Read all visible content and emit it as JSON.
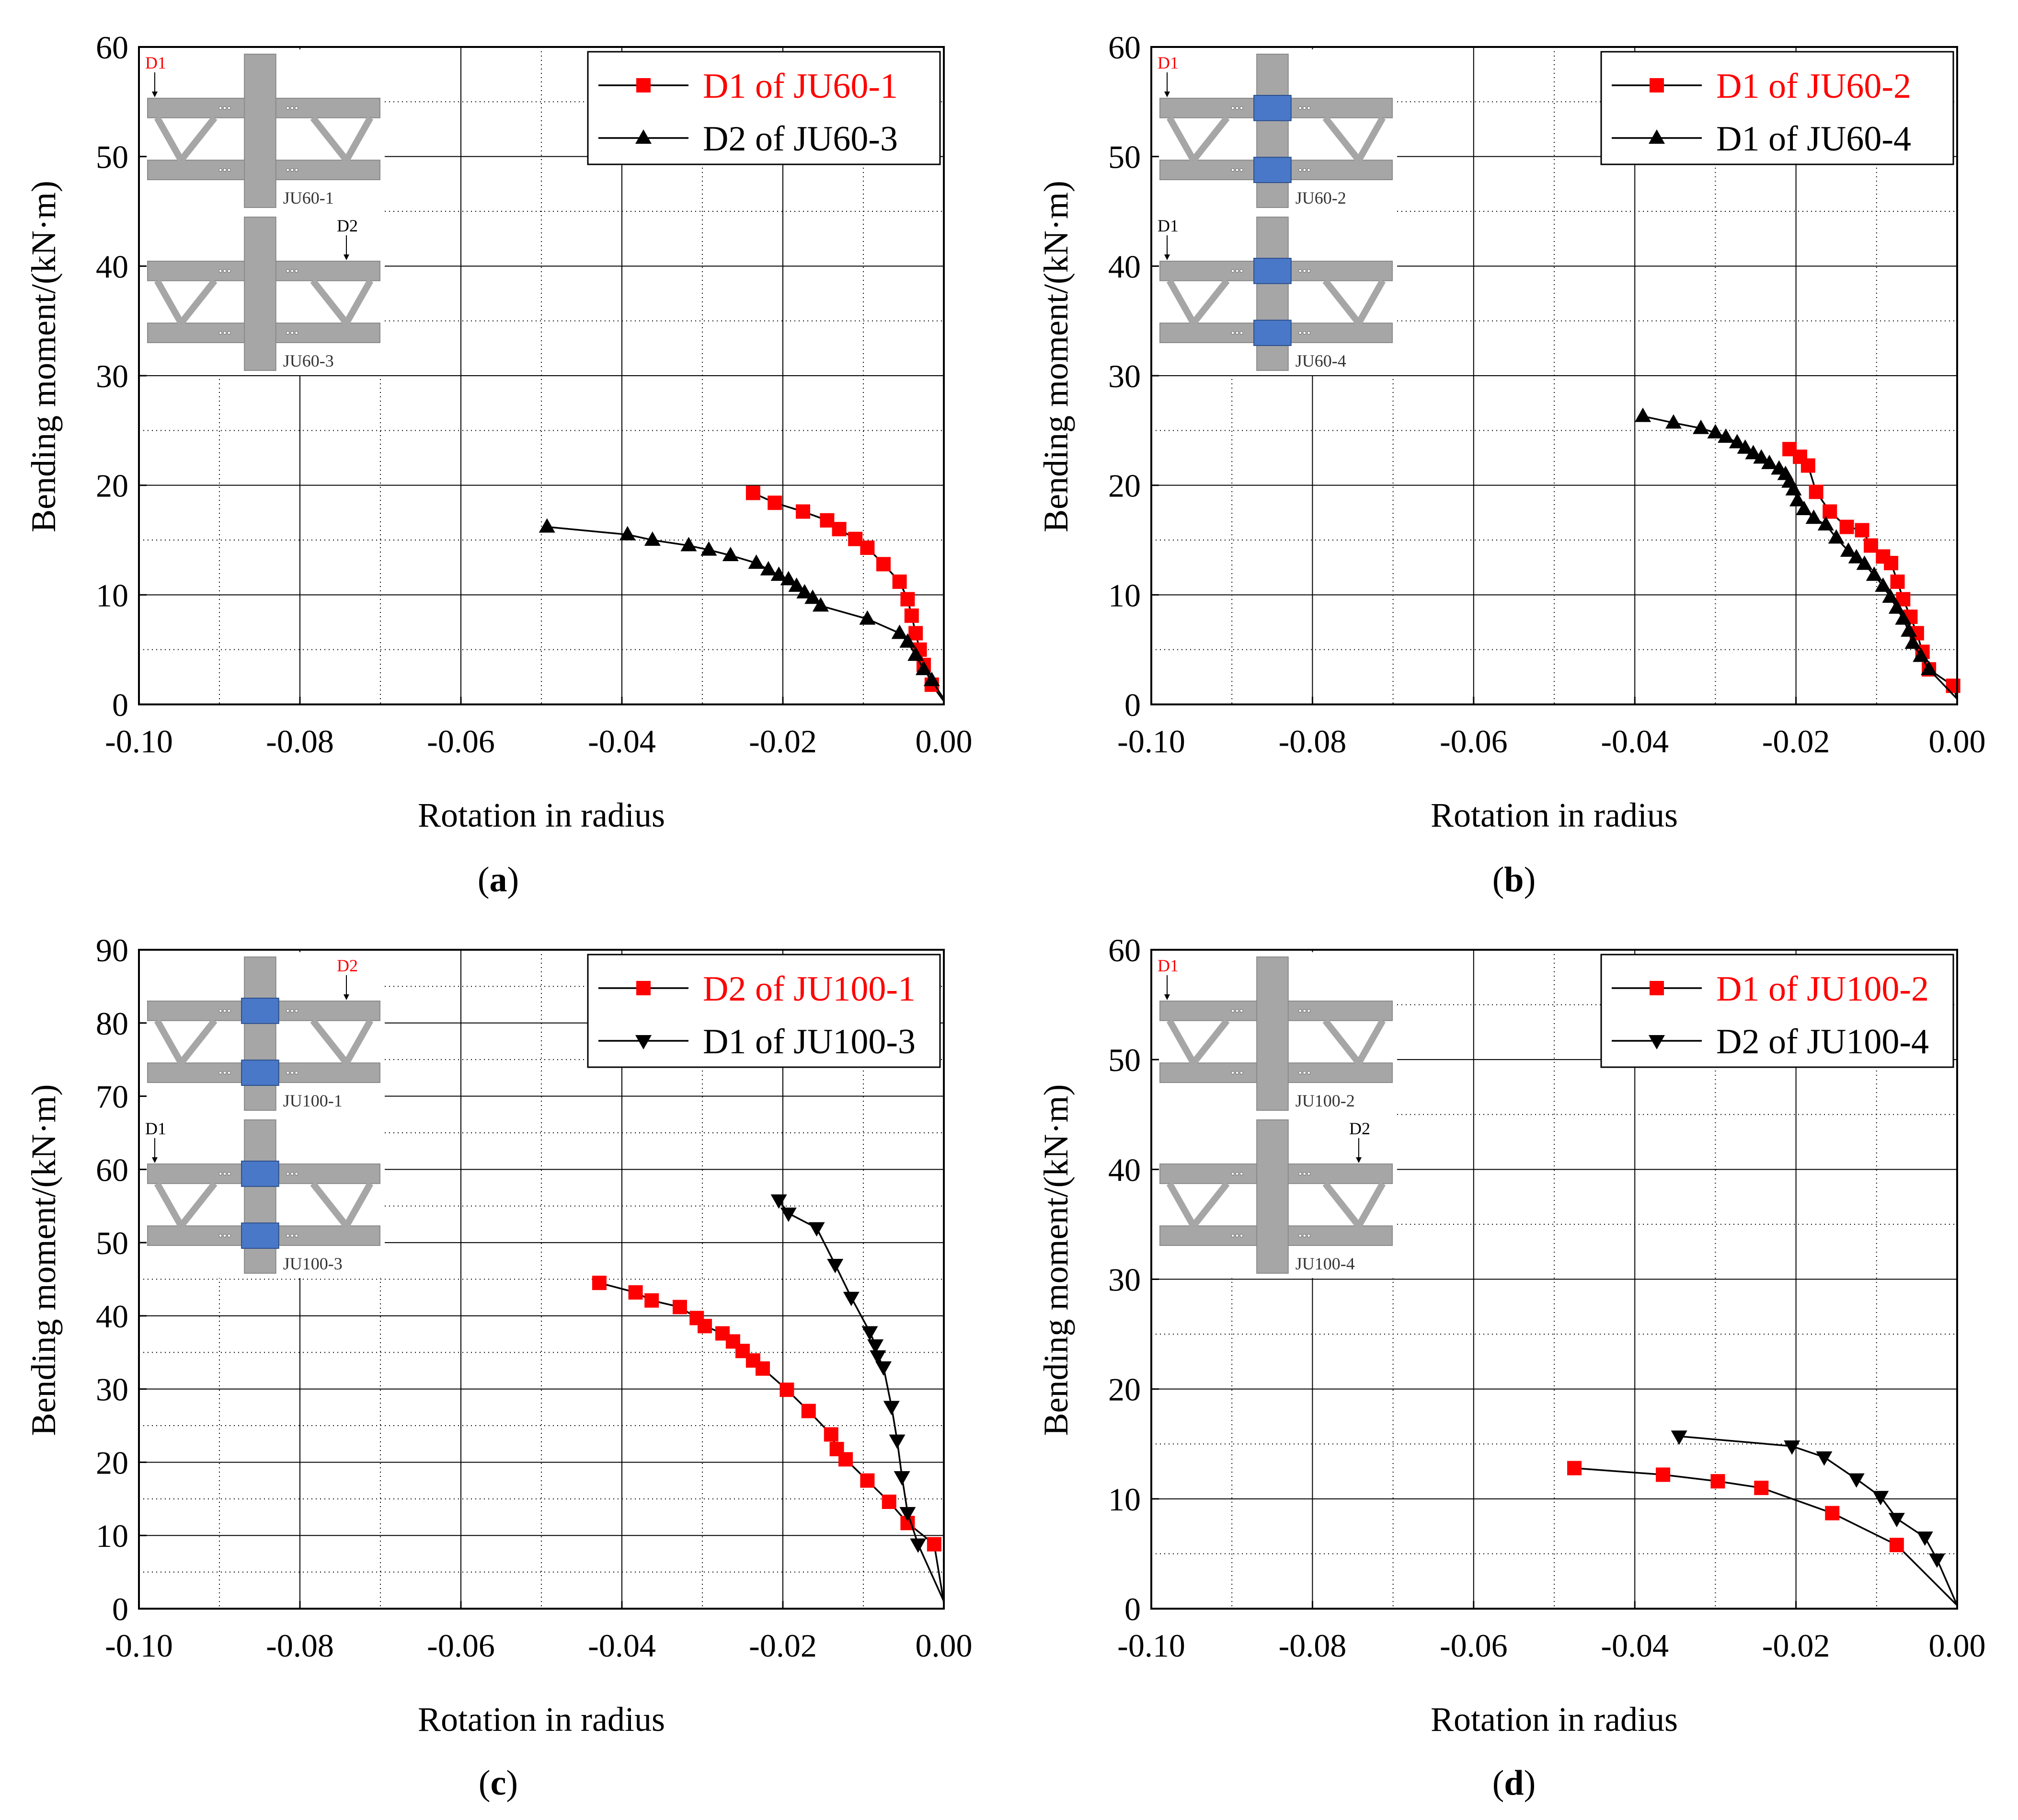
{
  "figure": {
    "panel_labels": [
      "(a)",
      "(b)",
      "(c)",
      "(d)"
    ]
  },
  "chart_data": [
    {
      "panel": "a",
      "type": "line",
      "title": "",
      "xlabel": "Rotation in radius",
      "ylabel": "Bending moment/(kN·m)",
      "xlim": [
        -0.1,
        0.0
      ],
      "ylim": [
        0,
        60
      ],
      "xticks": [
        -0.1,
        -0.08,
        -0.06,
        -0.04,
        -0.02,
        0.0
      ],
      "xtick_labels": [
        "-0.10",
        "-0.08",
        "-0.06",
        "-0.04",
        "-0.02",
        "0.00"
      ],
      "yticks": [
        0,
        10,
        20,
        30,
        40,
        50,
        60
      ],
      "ytick_labels": [
        "0",
        "10",
        "20",
        "30",
        "40",
        "50",
        "60"
      ],
      "legend_position": "top-right",
      "series": [
        {
          "name": "D1 of JU60-1",
          "marker": "square",
          "color": "#ff0000",
          "legend_color": "#ff0000",
          "x": [
            0.0,
            -0.0015,
            -0.0025,
            -0.003,
            -0.0035,
            -0.004,
            -0.0045,
            -0.0055,
            -0.0075,
            -0.0095,
            -0.011,
            -0.013,
            -0.0145,
            -0.0175,
            -0.021,
            -0.0237
          ],
          "y": [
            0.3,
            1.8,
            3.6,
            5.0,
            6.5,
            8.1,
            9.6,
            11.2,
            12.8,
            14.3,
            15.1,
            16.0,
            16.8,
            17.6,
            18.4,
            19.3
          ]
        },
        {
          "name": "D2 of JU60-3",
          "marker": "triangle-up",
          "color": "#000000",
          "legend_color": "#000000",
          "x": [
            0.0,
            -0.0015,
            -0.0025,
            -0.0035,
            -0.0045,
            -0.0055,
            -0.0095,
            -0.0153,
            -0.0163,
            -0.0173,
            -0.0183,
            -0.0193,
            -0.0205,
            -0.0218,
            -0.0233,
            -0.0265,
            -0.0292,
            -0.0317,
            -0.0362,
            -0.0393,
            -0.0493
          ],
          "y": [
            0.5,
            2.2,
            3.2,
            4.5,
            5.7,
            6.5,
            7.8,
            9.0,
            9.7,
            10.2,
            10.8,
            11.4,
            11.8,
            12.3,
            12.9,
            13.6,
            14.1,
            14.5,
            15.0,
            15.5,
            16.2
          ]
        }
      ],
      "insets": [
        {
          "label": "JU60-1",
          "callout": "D1",
          "callout_color": "#ff0000",
          "callout_side": "left",
          "blue_plates": false
        },
        {
          "label": "JU60-3",
          "callout": "D2",
          "callout_color": "#000000",
          "callout_side": "right",
          "blue_plates": false
        }
      ]
    },
    {
      "panel": "b",
      "type": "line",
      "title": "",
      "xlabel": "Rotation in radius",
      "ylabel": "Bending moment/(kN·m)",
      "xlim": [
        -0.1,
        0.0
      ],
      "ylim": [
        0,
        60
      ],
      "xticks": [
        -0.1,
        -0.08,
        -0.06,
        -0.04,
        -0.02,
        0.0
      ],
      "xtick_labels": [
        "-0.10",
        "-0.08",
        "-0.06",
        "-0.04",
        "-0.02",
        "0.00"
      ],
      "yticks": [
        0,
        10,
        20,
        30,
        40,
        50,
        60
      ],
      "ytick_labels": [
        "0",
        "10",
        "20",
        "30",
        "40",
        "50",
        "60"
      ],
      "legend_position": "top-right",
      "series": [
        {
          "name": "D1 of JU60-2",
          "marker": "square",
          "color": "#ff0000",
          "legend_color": "#ff0000",
          "x": [
            0.0,
            -0.0005,
            -0.0035,
            -0.0043,
            -0.005,
            -0.0058,
            -0.0067,
            -0.0074,
            -0.0082,
            -0.0092,
            -0.0107,
            -0.0118,
            -0.0137,
            -0.0158,
            -0.0175,
            -0.0185,
            -0.0195,
            -0.0208
          ],
          "y": [
            0.5,
            1.7,
            3.2,
            4.8,
            6.5,
            8.0,
            9.6,
            11.2,
            12.9,
            13.5,
            14.5,
            15.9,
            16.2,
            17.6,
            19.4,
            21.8,
            22.6,
            23.3
          ]
        },
        {
          "name": "D1 of JU60-4",
          "marker": "triangle-up",
          "color": "#000000",
          "legend_color": "#000000",
          "x": [
            0.0,
            -0.0035,
            -0.0045,
            -0.0055,
            -0.006,
            -0.0067,
            -0.0075,
            -0.0083,
            -0.0092,
            -0.0103,
            -0.0115,
            -0.0125,
            -0.0135,
            -0.015,
            -0.0163,
            -0.0178,
            -0.019,
            -0.0198,
            -0.0203,
            -0.0208,
            -0.0213,
            -0.0221,
            -0.0233,
            -0.0243,
            -0.0253,
            -0.0263,
            -0.0273,
            -0.0287,
            -0.03,
            -0.0318,
            -0.0352,
            -0.039
          ],
          "y": [
            0.5,
            3.2,
            4.4,
            5.6,
            6.7,
            7.8,
            8.8,
            9.8,
            10.8,
            11.8,
            12.8,
            13.4,
            14.0,
            15.2,
            16.4,
            17.0,
            17.8,
            18.6,
            19.6,
            20.3,
            21.0,
            21.5,
            22.0,
            22.5,
            22.9,
            23.4,
            23.9,
            24.4,
            24.8,
            25.2,
            25.7,
            26.3
          ]
        }
      ],
      "insets": [
        {
          "label": "JU60-2",
          "callout": "D1",
          "callout_color": "#ff0000",
          "callout_side": "left",
          "blue_plates": true
        },
        {
          "label": "JU60-4",
          "callout": "D1",
          "callout_color": "#000000",
          "callout_side": "left",
          "blue_plates": true
        }
      ]
    },
    {
      "panel": "c",
      "type": "line",
      "title": "",
      "xlabel": "Rotation in radius",
      "ylabel": "Bending moment/(kN·m)",
      "xlim": [
        -0.1,
        0.0
      ],
      "ylim": [
        0,
        90
      ],
      "xticks": [
        -0.1,
        -0.08,
        -0.06,
        -0.04,
        -0.02,
        0.0
      ],
      "xtick_labels": [
        "-0.10",
        "-0.08",
        "-0.06",
        "-0.04",
        "-0.02",
        "0.00"
      ],
      "yticks": [
        0,
        10,
        20,
        30,
        40,
        50,
        60,
        70,
        80,
        90
      ],
      "ytick_labels": [
        "0",
        "10",
        "20",
        "30",
        "40",
        "50",
        "60",
        "70",
        "80",
        "90"
      ],
      "legend_position": "top-right",
      "series": [
        {
          "name": "D2 of JU100-1",
          "marker": "square",
          "color": "#ff0000",
          "legend_color": "#ff0000",
          "x": [
            0.0,
            -0.0012,
            -0.0045,
            -0.0068,
            -0.0095,
            -0.0122,
            -0.0133,
            -0.014,
            -0.0168,
            -0.0195,
            -0.0225,
            -0.0237,
            -0.025,
            -0.0262,
            -0.0275,
            -0.0297,
            -0.0307,
            -0.0328,
            -0.0363,
            -0.0383,
            -0.0428
          ],
          "y": [
            0.8,
            8.8,
            11.7,
            14.6,
            17.5,
            20.4,
            21.8,
            23.8,
            27.0,
            29.9,
            32.8,
            33.9,
            35.2,
            36.5,
            37.6,
            38.6,
            39.7,
            41.2,
            42.1,
            43.2,
            44.5
          ]
        },
        {
          "name": "D1 of JU100-3",
          "marker": "triangle-down",
          "color": "#000000",
          "legend_color": "#000000",
          "x": [
            0.0,
            -0.0032,
            -0.0045,
            -0.0052,
            -0.0058,
            -0.0065,
            -0.0075,
            -0.0082,
            -0.0085,
            -0.0092,
            -0.0115,
            -0.0135,
            -0.0158,
            -0.0193,
            -0.0205
          ],
          "y": [
            1.0,
            8.8,
            13.1,
            18.0,
            23.0,
            27.6,
            33.0,
            34.5,
            36.0,
            37.8,
            42.5,
            47.0,
            52.0,
            54.0,
            55.8
          ]
        }
      ],
      "insets": [
        {
          "label": "JU100-1",
          "callout": "D2",
          "callout_color": "#ff0000",
          "callout_side": "right",
          "blue_plates": true
        },
        {
          "label": "JU100-3",
          "callout": "D1",
          "callout_color": "#000000",
          "callout_side": "left",
          "blue_plates": true
        }
      ]
    },
    {
      "panel": "d",
      "type": "line",
      "title": "",
      "xlabel": "Rotation in radius",
      "ylabel": "Bending moment/(kN·m)",
      "xlim": [
        -0.1,
        0.0
      ],
      "ylim": [
        0,
        60
      ],
      "xticks": [
        -0.1,
        -0.08,
        -0.06,
        -0.04,
        -0.02,
        0.0
      ],
      "xtick_labels": [
        "-0.10",
        "-0.08",
        "-0.06",
        "-0.04",
        "-0.02",
        "0.00"
      ],
      "yticks": [
        0,
        10,
        20,
        30,
        40,
        50,
        60
      ],
      "ytick_labels": [
        "0",
        "10",
        "20",
        "30",
        "40",
        "50",
        "60"
      ],
      "legend_position": "top-right",
      "series": [
        {
          "name": "D1 of JU100-2",
          "marker": "square",
          "color": "#ff0000",
          "legend_color": "#ff0000",
          "x": [
            0.0,
            -0.0075,
            -0.0155,
            -0.0243,
            -0.0297,
            -0.0365,
            -0.0475
          ],
          "y": [
            0.3,
            5.8,
            8.7,
            11.0,
            11.6,
            12.2,
            12.8
          ]
        },
        {
          "name": "D2 of JU100-4",
          "marker": "triangle-down",
          "color": "#000000",
          "legend_color": "#000000",
          "x": [
            0.0,
            -0.0025,
            -0.004,
            -0.0075,
            -0.0095,
            -0.0125,
            -0.0165,
            -0.0205,
            -0.0345
          ],
          "y": [
            0.3,
            4.5,
            6.5,
            8.2,
            10.2,
            11.8,
            13.8,
            14.8,
            15.7
          ]
        }
      ],
      "insets": [
        {
          "label": "JU100-2",
          "callout": "D1",
          "callout_color": "#ff0000",
          "callout_side": "left",
          "blue_plates": false
        },
        {
          "label": "JU100-4",
          "callout": "D2",
          "callout_color": "#000000",
          "callout_side": "right",
          "blue_plates": false
        }
      ]
    }
  ]
}
